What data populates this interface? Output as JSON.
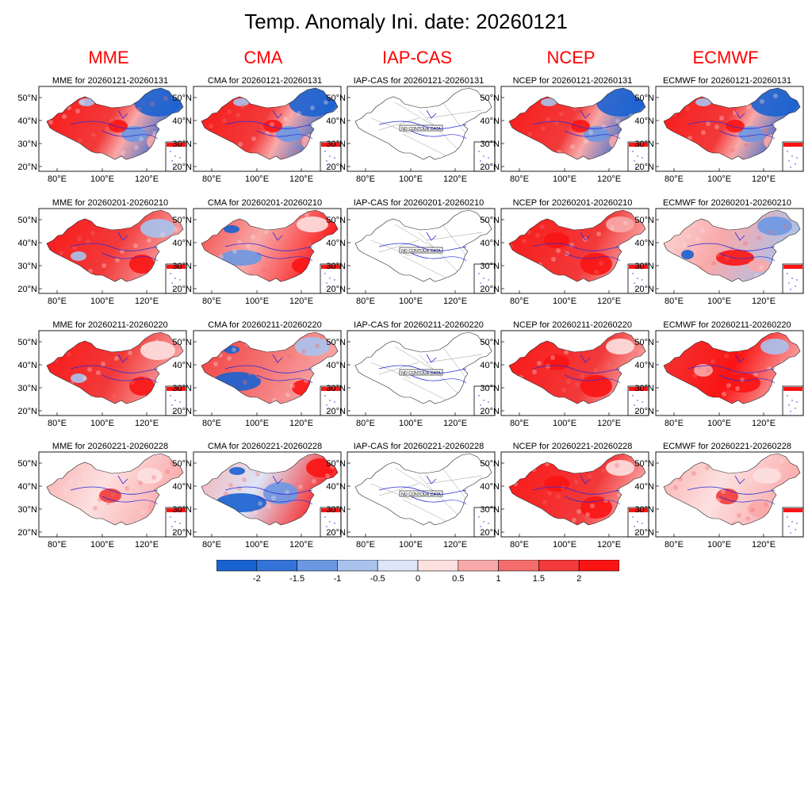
{
  "title": "Temp. Anomaly Ini. date: 20260121",
  "models": [
    "MME",
    "CMA",
    "IAP-CAS",
    "NCEP",
    "ECMWF"
  ],
  "periods": [
    "20260121-20260131",
    "20260201-20260210",
    "20260211-20260220",
    "20260221-20260228"
  ],
  "no_data_label": "NO CONTOUR DATA",
  "lat_ticks": [
    "50°N",
    "40°N",
    "30°N",
    "20°N"
  ],
  "lon_ticks": [
    "80°E",
    "100°E",
    "120°E"
  ],
  "colorbar": {
    "labels": [
      "-2",
      "-1.5",
      "-1",
      "-0.5",
      "0",
      "0.5",
      "1",
      "1.5",
      "2"
    ],
    "colors": [
      "#1962d1",
      "#3474d9",
      "#6b98e3",
      "#a9c3ee",
      "#dde6f8",
      "#fde0e0",
      "#f9a9a9",
      "#f36d6d",
      "#f23a3a",
      "#fa1414"
    ]
  },
  "anomaly_levels": {
    "MME": [
      "mixed-warm-west-cold-northeast",
      "warm",
      "warm",
      "slightly-warm"
    ],
    "CMA": [
      "mixed-warm-west-cold-northeast",
      "mixed",
      "mixed-cold-tibet",
      "mixed-cold-center"
    ],
    "IAP-CAS": [
      "no-data",
      "no-data",
      "no-data",
      "no-data"
    ],
    "NCEP": [
      "mixed-warm-west-cold-northeast",
      "warm",
      "warm",
      "warm"
    ],
    "ECMWF": [
      "mixed-warm-west-cold-northeast",
      "mixed",
      "warm",
      "slightly-warm"
    ]
  }
}
